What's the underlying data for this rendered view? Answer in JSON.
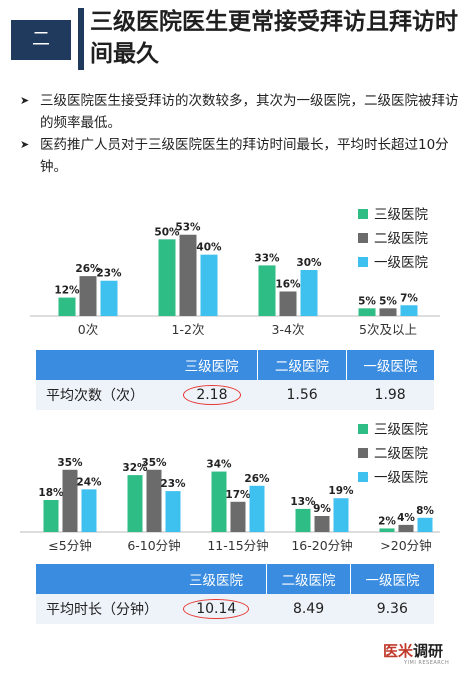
{
  "header": {
    "section": "二",
    "title": "三级医院医生更常接受拜访且拜访时间最久"
  },
  "bullets": [
    "三级医院医生接受拜访的次数较多，其次为一级医院，二级医院被拜访的频率最低。",
    "医药推广人员对于三级医院医生的拜访时间最长，平均时长超过10分钟。"
  ],
  "colors": {
    "tier3": "#2ebd85",
    "tier2": "#6b6b6b",
    "tier1": "#3fc1f0",
    "header_bg": "#1f3a5c",
    "table_header": "#3a8ce0"
  },
  "legend": [
    "三级医院",
    "二级医院",
    "一级医院"
  ],
  "chart_data": [
    {
      "type": "bar",
      "categories": [
        "0次",
        "1-2次",
        "3-4次",
        "5次及以上"
      ],
      "series": [
        {
          "name": "三级医院",
          "values": [
            12,
            50,
            33,
            5
          ]
        },
        {
          "name": "二级医院",
          "values": [
            26,
            53,
            16,
            5
          ]
        },
        {
          "name": "一级医院",
          "values": [
            23,
            40,
            30,
            7
          ]
        }
      ],
      "unit": "%",
      "ylim": [
        0,
        60
      ]
    },
    {
      "type": "bar",
      "categories": [
        "≤5分钟",
        "6-10分钟",
        "11-15分钟",
        "16-20分钟",
        ">20分钟"
      ],
      "series": [
        {
          "name": "三级医院",
          "values": [
            18,
            32,
            34,
            13,
            2
          ]
        },
        {
          "name": "二级医院",
          "values": [
            35,
            35,
            17,
            9,
            4
          ]
        },
        {
          "name": "一级医院",
          "values": [
            24,
            23,
            26,
            19,
            8
          ]
        }
      ],
      "unit": "%",
      "ylim": [
        0,
        45
      ]
    }
  ],
  "table1": {
    "headers": [
      "三级医院",
      "二级医院",
      "一级医院"
    ],
    "label": "平均次数（次）",
    "values": [
      "2.18",
      "1.56",
      "1.98"
    ]
  },
  "table2": {
    "headers": [
      "三级医院",
      "二级医院",
      "一级医院"
    ],
    "label": "平均时长（分钟）",
    "values": [
      "10.14",
      "8.49",
      "9.36"
    ]
  },
  "logo": {
    "main_red": "医米",
    "main_dark": "调研",
    "sub": "YIMI RESEARCH"
  }
}
